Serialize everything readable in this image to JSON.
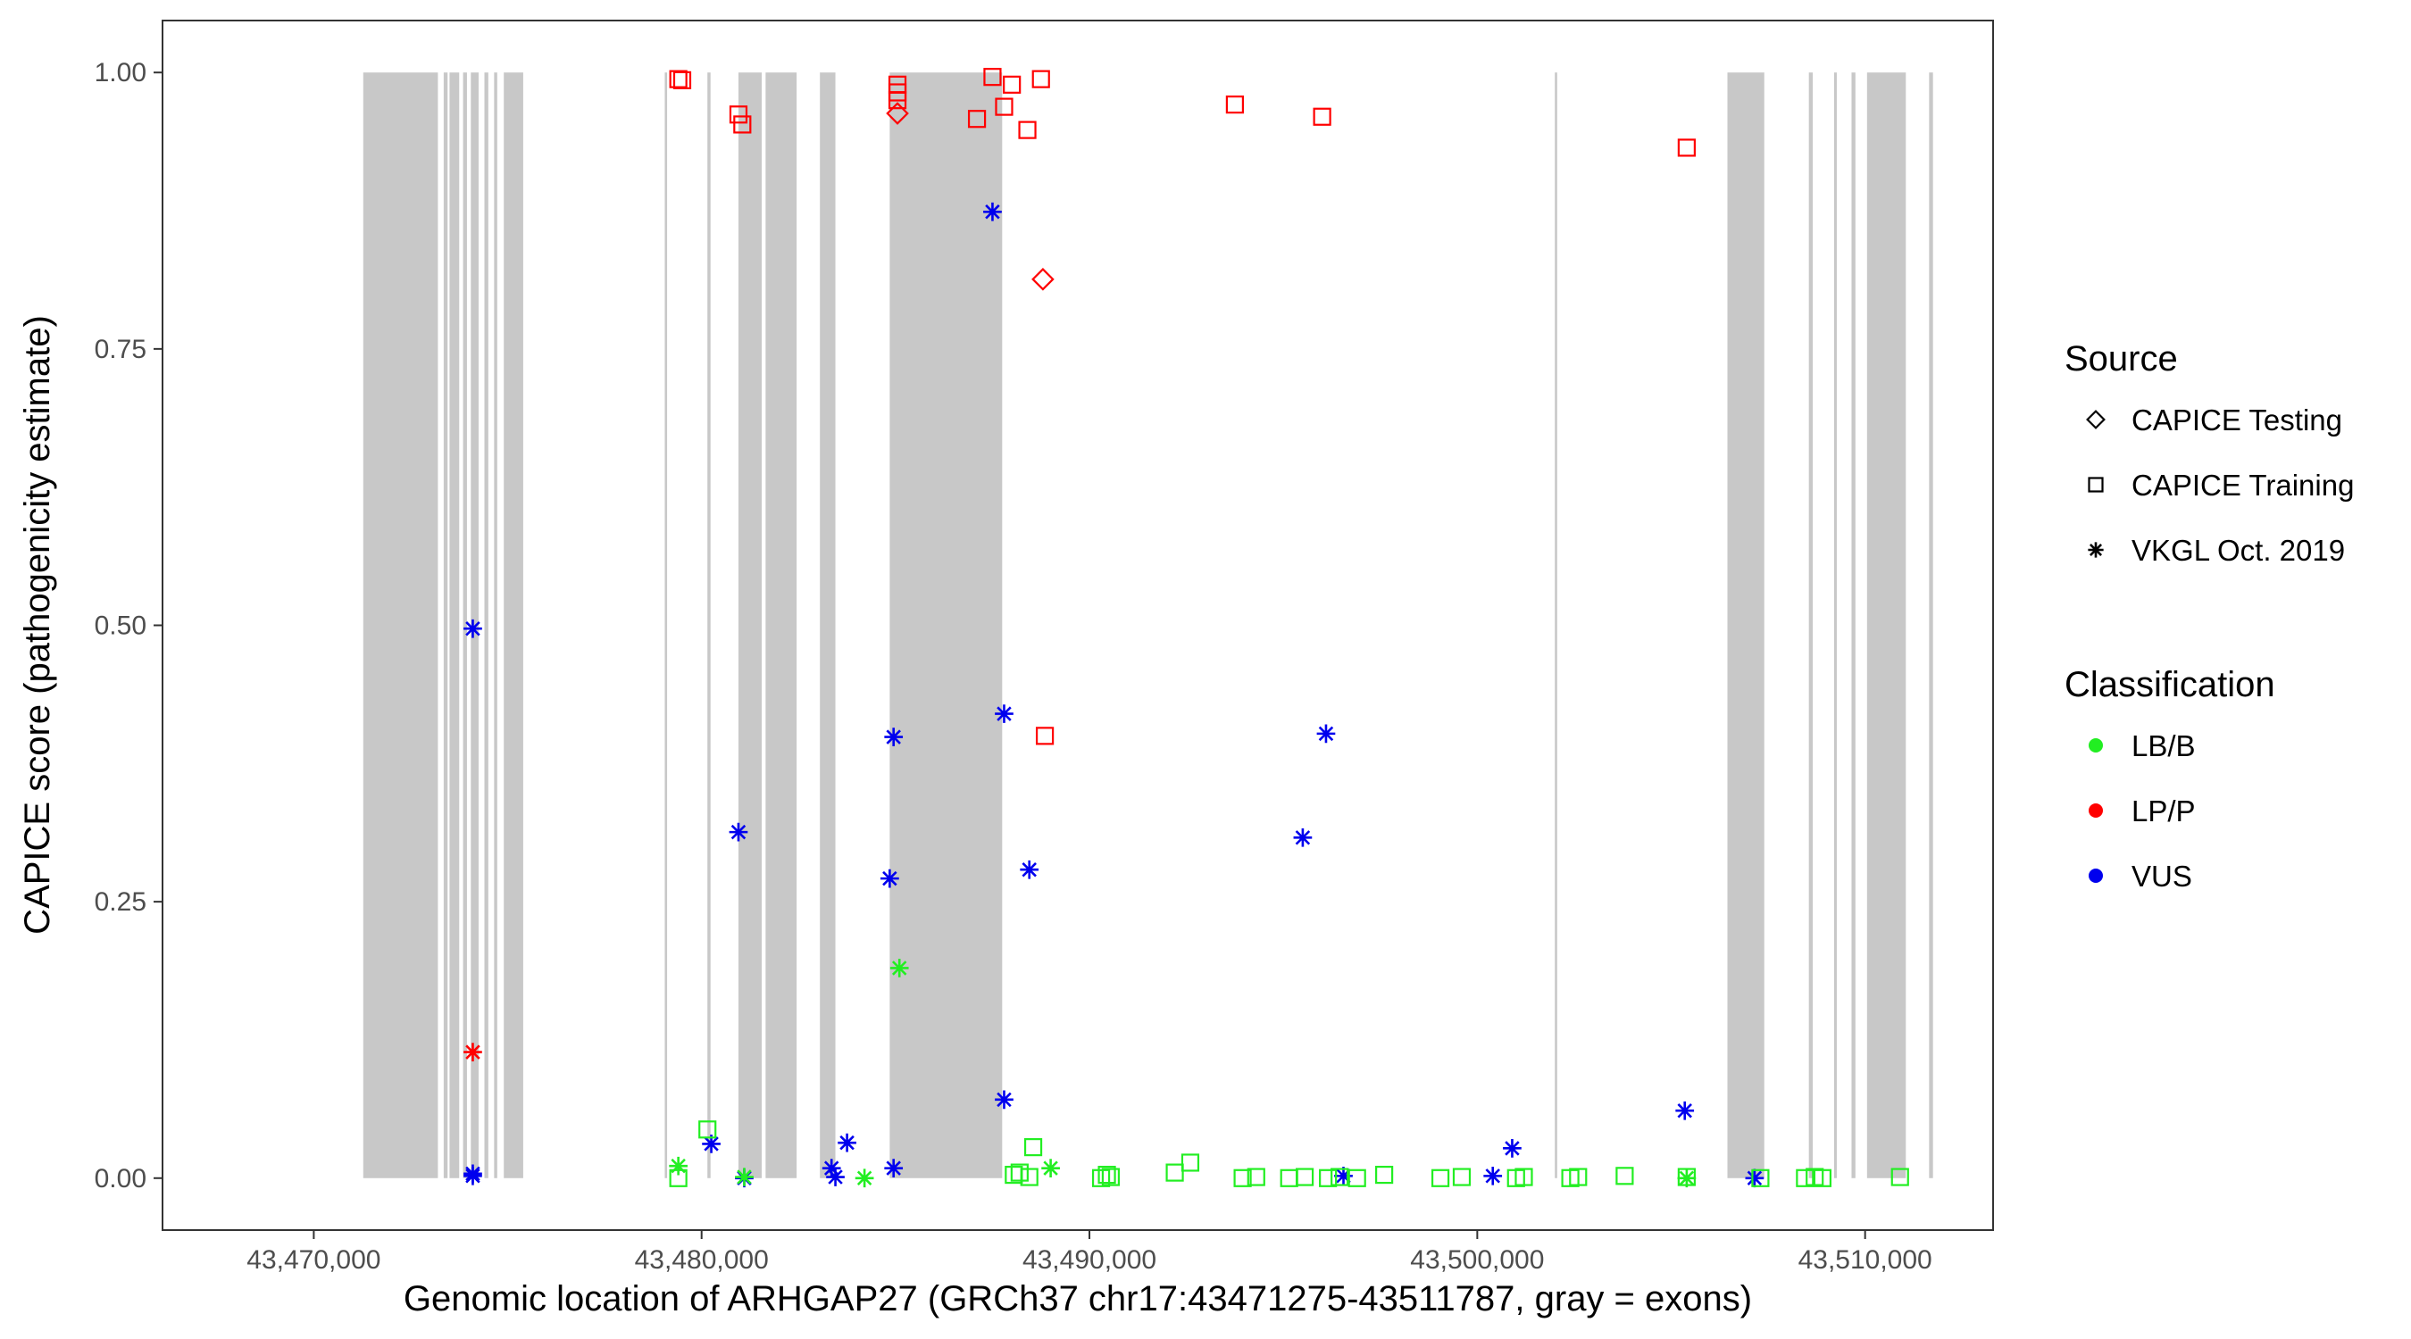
{
  "chart_data": {
    "type": "scatter",
    "title": "",
    "xlabel": "Genomic location of ARHGAP27 (GRCh37 chr17:43471275-43511787, gray = exons)",
    "ylabel": "CAPICE score (pathogenicity estimate)",
    "xlim": [
      43466100,
      43513300
    ],
    "ylim": [
      -0.047,
      1.047
    ],
    "x_ticks": [
      43470000,
      43480000,
      43490000,
      43500000,
      43510000
    ],
    "x_tick_labels": [
      "43,470,000",
      "43,480,000",
      "43,490,000",
      "43,500,000",
      "43,510,000"
    ],
    "y_ticks": [
      0,
      0.25,
      0.5,
      0.75,
      1
    ],
    "y_tick_labels": [
      "0.00",
      "0.25",
      "0.50",
      "0.75",
      "1.00"
    ],
    "grid": false,
    "exon_color": "#c8c8c8",
    "exons": [
      [
        43471275,
        43473200
      ],
      [
        43473350,
        43473450
      ],
      [
        43473500,
        43473750
      ],
      [
        43473850,
        43473950
      ],
      [
        43474050,
        43474250
      ],
      [
        43474400,
        43474500
      ],
      [
        43474650,
        43474730
      ],
      [
        43474900,
        43475400
      ],
      [
        43479050,
        43479110
      ],
      [
        43480150,
        43480230
      ],
      [
        43480950,
        43481550
      ],
      [
        43481650,
        43482450
      ],
      [
        43483050,
        43483450
      ],
      [
        43484850,
        43487750
      ],
      [
        43502000,
        43502060
      ],
      [
        43506450,
        43507400
      ],
      [
        43508550,
        43508650
      ],
      [
        43509200,
        43509270
      ],
      [
        43509650,
        43509750
      ],
      [
        43510050,
        43511050
      ],
      [
        43511650,
        43511750
      ]
    ],
    "legend": {
      "position": "right",
      "source_title": "Source",
      "source_entries": [
        {
          "label": "CAPICE Testing",
          "shape": "diamond"
        },
        {
          "label": "CAPICE Training",
          "shape": "square"
        },
        {
          "label": "VKGL Oct. 2019",
          "shape": "asterisk"
        }
      ],
      "class_title": "Classification",
      "class_entries": [
        {
          "label": "LB/B",
          "color": "#22ee22"
        },
        {
          "label": "LP/P",
          "color": "#ff0000"
        },
        {
          "label": "VUS",
          "color": "#0000ee"
        }
      ]
    },
    "series": [
      {
        "source": "CAPICE Testing",
        "class": "LP/P",
        "points": [
          [
            43485050,
            0.963
          ],
          [
            43488800,
            0.813
          ]
        ]
      },
      {
        "source": "CAPICE Training",
        "class": "LP/P",
        "points": [
          [
            43479400,
            0.994
          ],
          [
            43479500,
            0.993
          ],
          [
            43480950,
            0.962
          ],
          [
            43481050,
            0.953
          ],
          [
            43485050,
            0.989
          ],
          [
            43485050,
            0.982
          ],
          [
            43485050,
            0.975
          ],
          [
            43487100,
            0.958
          ],
          [
            43487500,
            0.996
          ],
          [
            43487800,
            0.969
          ],
          [
            43488000,
            0.989
          ],
          [
            43488400,
            0.948
          ],
          [
            43488750,
            0.994
          ],
          [
            43493750,
            0.971
          ],
          [
            43496000,
            0.96
          ],
          [
            43505400,
            0.932
          ],
          [
            43488850,
            0.4
          ]
        ]
      },
      {
        "source": "VKGL Oct. 2019",
        "class": "LP/P",
        "points": [
          [
            43474100,
            0.114
          ]
        ]
      },
      {
        "source": "VKGL Oct. 2019",
        "class": "VUS",
        "points": [
          [
            43474100,
            0.497
          ],
          [
            43474100,
            0.004
          ],
          [
            43474100,
            0.002
          ],
          [
            43480250,
            0.031
          ],
          [
            43480950,
            0.313
          ],
          [
            43481100,
            0.0
          ],
          [
            43483350,
            0.009
          ],
          [
            43483450,
            0.001
          ],
          [
            43483750,
            0.032
          ],
          [
            43484850,
            0.271
          ],
          [
            43484950,
            0.399
          ],
          [
            43484950,
            0.009
          ],
          [
            43487500,
            0.874
          ],
          [
            43487800,
            0.42
          ],
          [
            43487800,
            0.071
          ],
          [
            43488450,
            0.279
          ],
          [
            43495500,
            0.308
          ],
          [
            43496100,
            0.402
          ],
          [
            43496550,
            0.002
          ],
          [
            43500400,
            0.002
          ],
          [
            43500900,
            0.027
          ],
          [
            43505350,
            0.061
          ],
          [
            43507150,
            0.0
          ]
        ]
      },
      {
        "source": "VKGL Oct. 2019",
        "class": "LB/B",
        "points": [
          [
            43479400,
            0.011
          ],
          [
            43481100,
            0.001
          ],
          [
            43484200,
            0.0
          ],
          [
            43485100,
            0.19
          ],
          [
            43489000,
            0.009
          ],
          [
            43505400,
            0.0
          ]
        ]
      },
      {
        "source": "CAPICE Training",
        "class": "LB/B",
        "points": [
          [
            43479400,
            0.0
          ],
          [
            43480150,
            0.044
          ],
          [
            43488050,
            0.003
          ],
          [
            43488200,
            0.005
          ],
          [
            43488450,
            0.001
          ],
          [
            43488550,
            0.028
          ],
          [
            43490300,
            0.0
          ],
          [
            43490450,
            0.003
          ],
          [
            43490550,
            0.001
          ],
          [
            43492200,
            0.005
          ],
          [
            43492600,
            0.014
          ],
          [
            43493950,
            0.0
          ],
          [
            43494300,
            0.001
          ],
          [
            43495150,
            0.0
          ],
          [
            43495550,
            0.001
          ],
          [
            43496150,
            0.0
          ],
          [
            43496450,
            0.001
          ],
          [
            43496900,
            0.0
          ],
          [
            43497600,
            0.003
          ],
          [
            43499050,
            0.0
          ],
          [
            43499600,
            0.001
          ],
          [
            43501000,
            0.0
          ],
          [
            43501200,
            0.001
          ],
          [
            43502400,
            0.0
          ],
          [
            43502600,
            0.001
          ],
          [
            43503800,
            0.002
          ],
          [
            43505400,
            0.001
          ],
          [
            43507300,
            0.0
          ],
          [
            43508450,
            0.0
          ],
          [
            43508700,
            0.001
          ],
          [
            43508900,
            0.0
          ],
          [
            43510900,
            0.001
          ]
        ]
      }
    ]
  }
}
